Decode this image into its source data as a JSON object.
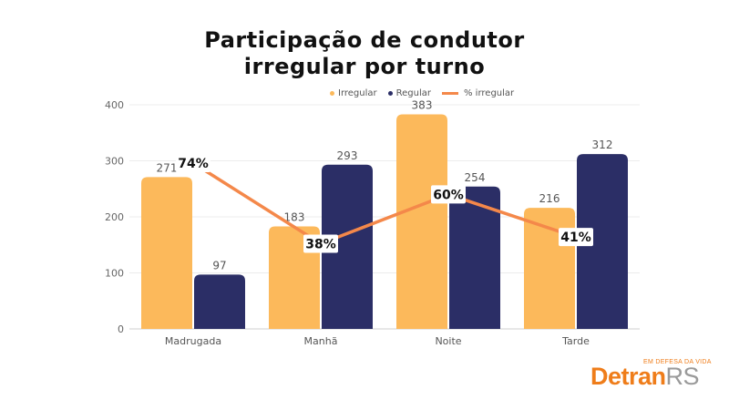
{
  "page": {
    "title_line1": "Participação de condutor",
    "title_line2": "irregular por turno"
  },
  "chart_data": {
    "type": "bar",
    "categories": [
      "Madrugada",
      "Manhã",
      "Noite",
      "Tarde"
    ],
    "series": [
      {
        "name": "Irregular",
        "kind": "bar",
        "color": "#fcb95b",
        "values": [
          271,
          183,
          383,
          216
        ]
      },
      {
        "name": "Regular",
        "kind": "bar",
        "color": "#2b2e66",
        "values": [
          97,
          293,
          254,
          312
        ]
      },
      {
        "name": "% irregular",
        "kind": "line",
        "color": "#f4884a",
        "values": [
          74,
          38,
          60,
          41
        ],
        "value_labels": [
          "74%",
          "38%",
          "60%",
          "41%"
        ]
      }
    ],
    "ylim": [
      0,
      400
    ],
    "yticks": [
      0,
      100,
      200,
      300,
      400
    ],
    "percent_axis_range": [
      0,
      100
    ],
    "grid": true,
    "legend": "top-right",
    "xlabel": "",
    "ylabel": ""
  },
  "logo": {
    "tagline": "EM DEFESA DA VIDA",
    "text_main": "Detran",
    "text_suffix": "RS"
  }
}
